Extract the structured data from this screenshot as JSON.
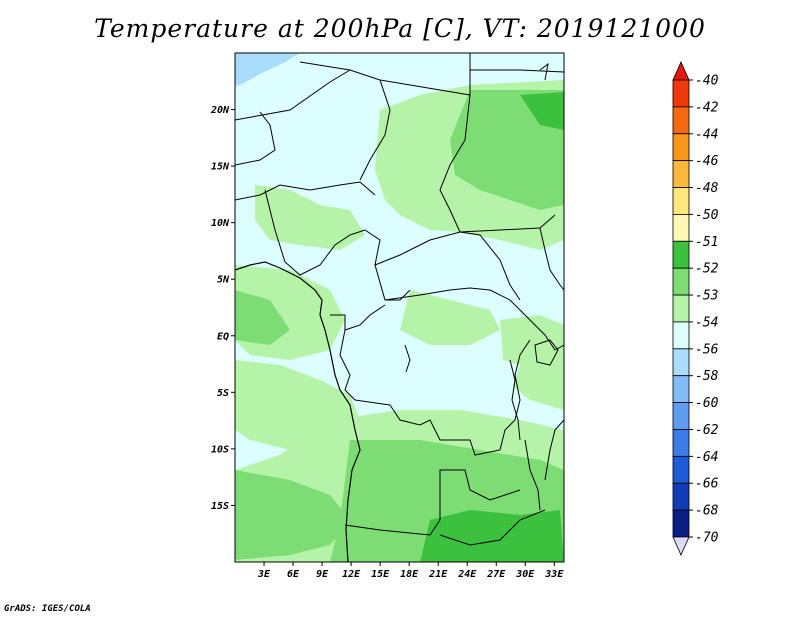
{
  "title": "Temperature at 200hPa [C], VT: 2019121000",
  "credit": "GrADS: IGES/COLA",
  "map": {
    "lon_range": [
      0,
      34
    ],
    "lat_range": [
      -20,
      25
    ],
    "lon_ticks": [
      "3E",
      "6E",
      "9E",
      "12E",
      "15E",
      "18E",
      "21E",
      "24E",
      "27E",
      "30E",
      "33E"
    ],
    "lat_ticks": [
      "20N",
      "15N",
      "10N",
      "5N",
      "EQ",
      "5S",
      "10S",
      "15S"
    ]
  },
  "colorbar": {
    "levels": [
      {
        "label": "-40",
        "color": "#e4190c"
      },
      {
        "label": "-42",
        "color": "#ee3a0a"
      },
      {
        "label": "-44",
        "color": "#f46a10"
      },
      {
        "label": "-46",
        "color": "#f8961a"
      },
      {
        "label": "-48",
        "color": "#fab83c"
      },
      {
        "label": "-50",
        "color": "#fde77e"
      },
      {
        "label": "-51",
        "color": "#fdf8b4"
      },
      {
        "label": "-52",
        "color": "#3cc13e"
      },
      {
        "label": "-53",
        "color": "#7ddd74"
      },
      {
        "label": "-54",
        "color": "#b5f4a8"
      },
      {
        "label": "-56",
        "color": "#dcfeff"
      },
      {
        "label": "-58",
        "color": "#a8dcfb"
      },
      {
        "label": "-60",
        "color": "#82bcf6"
      },
      {
        "label": "-62",
        "color": "#5e9cef"
      },
      {
        "label": "-64",
        "color": "#3c7ce6"
      },
      {
        "label": "-66",
        "color": "#1e5cd7"
      },
      {
        "label": "-68",
        "color": "#113cb8"
      },
      {
        "label": "-70",
        "color": "#0a1e84"
      }
    ],
    "low_end_color": "#dcdcf8"
  }
}
